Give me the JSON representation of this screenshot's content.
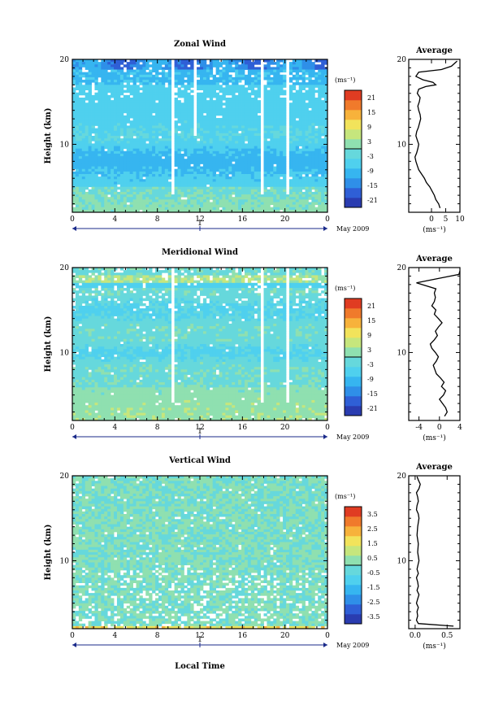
{
  "page": {
    "xlabel": "Local Time",
    "date_label": "May 2009",
    "day_marker": "1"
  },
  "chart_data": [
    {
      "type": "heatmap",
      "title": "Zonal Wind",
      "ylabel": "Height (km)",
      "xlabel": "Local Time",
      "x_ticks": [
        "0",
        "4",
        "8",
        "12",
        "16",
        "20",
        "0"
      ],
      "xlim": [
        0,
        24
      ],
      "ylim": [
        2,
        20
      ],
      "y_ticks": [
        "20",
        "10"
      ],
      "colorbar": {
        "unit": "(ms⁻¹)",
        "ticks": [
          "21",
          "15",
          "9",
          "3",
          "-3",
          "-9",
          "-15",
          "-21"
        ],
        "range": [
          -24,
          24
        ]
      },
      "colormap": [
        "#2a3cb0",
        "#2f5fd6",
        "#2f8fe8",
        "#36b5f0",
        "#4fd0ee",
        "#66d8dc",
        "#8fe0b0",
        "#c6e67d",
        "#f2e35b",
        "#f7b23b",
        "#f07a2b",
        "#e03c22"
      ],
      "dominant_field": "mostly negative (-3 to -12 ms⁻¹) between 3 and 17 km, stronger westward near 8 km, near zero near the ground and above 18 km"
    },
    {
      "type": "line",
      "title": "Average",
      "xlabel": "(ms⁻¹)",
      "ylabel": "",
      "x_ticks": [
        "0",
        "5",
        "10"
      ],
      "xlim": [
        -8,
        10
      ],
      "ylim": [
        2,
        20
      ],
      "y_ticks": [
        "20",
        "10"
      ],
      "series": [
        {
          "x": [
            3,
            2.5,
            1.5,
            1.0,
            0.2,
            -0.6,
            -1.8,
            -2.5,
            -3.5,
            -4.5,
            -5.0,
            -5.5,
            -5.8,
            -5.2,
            -4.8,
            -4.5,
            -5.0,
            -5.5,
            -5.2,
            -4.6,
            -4.2,
            -3.8,
            -4.0,
            -4.5,
            -4.8,
            -4.3,
            -4.0,
            -5.0,
            -4.5,
            -2.0,
            1.5,
            0.5,
            -3.0,
            -5.5,
            -4.5,
            3.5,
            7.0,
            9.0
          ],
          "y": [
            2.5,
            3.0,
            3.5,
            4.0,
            4.5,
            5.0,
            5.5,
            6.0,
            6.5,
            7.0,
            7.5,
            8.0,
            8.5,
            9.0,
            9.5,
            10.0,
            10.5,
            11.0,
            11.5,
            12.0,
            12.5,
            13.0,
            13.5,
            14.0,
            14.5,
            15.0,
            15.5,
            16.0,
            16.5,
            16.8,
            17.0,
            17.3,
            17.6,
            18.0,
            18.5,
            18.8,
            19.2,
            19.8
          ]
        }
      ]
    },
    {
      "type": "heatmap",
      "title": "Meridional Wind",
      "ylabel": "Height (km)",
      "xlabel": "Local Time",
      "x_ticks": [
        "0",
        "4",
        "8",
        "12",
        "16",
        "20",
        "0"
      ],
      "xlim": [
        0,
        24
      ],
      "ylim": [
        2,
        20
      ],
      "y_ticks": [
        "20",
        "10"
      ],
      "colorbar": {
        "unit": "(ms⁻¹)",
        "ticks": [
          "21",
          "15",
          "9",
          "3",
          "-3",
          "-9",
          "-15",
          "-21"
        ],
        "range": [
          -24,
          24
        ]
      },
      "colormap": [
        "#2a3cb0",
        "#2f5fd6",
        "#2f8fe8",
        "#36b5f0",
        "#4fd0ee",
        "#66d8dc",
        "#8fe0b0",
        "#c6e67d",
        "#f2e35b",
        "#f7b23b",
        "#f07a2b",
        "#e03c22"
      ],
      "dominant_field": "mostly weak (-6 to +3 ms⁻¹), positive band near 3–6 km and near 18 km, negative layers near 10 km and 15 km"
    },
    {
      "type": "line",
      "title": "Average",
      "xlabel": "(ms⁻¹)",
      "ylabel": "",
      "x_ticks": [
        "-4",
        "0",
        "4"
      ],
      "xlim": [
        -6,
        4
      ],
      "ylim": [
        2,
        20
      ],
      "y_ticks": [
        "20",
        "10"
      ],
      "series": [
        {
          "x": [
            1.0,
            1.5,
            1.2,
            0.6,
            0.0,
            0.8,
            1.2,
            0.4,
            0.9,
            0.2,
            -0.6,
            -0.9,
            -1.2,
            -0.6,
            -0.2,
            -0.8,
            -1.5,
            -1.8,
            -1.0,
            -0.4,
            -0.8,
            -0.2,
            0.5,
            -0.2,
            -1.0,
            -0.7,
            -1.5,
            -1.0,
            -0.8,
            -1.0,
            -0.7,
            -4.5,
            0.5,
            3.8,
            4.0
          ],
          "y": [
            2.5,
            3.0,
            3.5,
            4.0,
            4.5,
            5.0,
            5.5,
            6.0,
            6.5,
            7.0,
            7.5,
            8.0,
            8.5,
            9.0,
            9.5,
            10.0,
            10.5,
            11.0,
            11.5,
            12.0,
            12.5,
            13.0,
            13.5,
            14.0,
            14.5,
            15.0,
            15.5,
            16.0,
            16.5,
            17.0,
            17.5,
            18.2,
            18.8,
            19.2,
            19.6
          ]
        }
      ]
    },
    {
      "type": "heatmap",
      "title": "Vertical Wind",
      "ylabel": "Height (km)",
      "xlabel": "Local Time",
      "x_ticks": [
        "0",
        "4",
        "8",
        "12",
        "16",
        "20",
        "0"
      ],
      "xlim": [
        0,
        24
      ],
      "ylim": [
        2,
        20
      ],
      "y_ticks": [
        "20",
        "10"
      ],
      "colorbar": {
        "unit": "(ms⁻¹)",
        "ticks": [
          "3.5",
          "2.5",
          "1.5",
          "0.5",
          "-0.5",
          "-1.5",
          "-2.5",
          "-3.5"
        ],
        "range": [
          -4,
          4
        ]
      },
      "colormap": [
        "#2a3cb0",
        "#2f5fd6",
        "#2f8fe8",
        "#36b5f0",
        "#4fd0ee",
        "#66d8dc",
        "#8fe0b0",
        "#c6e67d",
        "#f2e35b",
        "#f7b23b",
        "#f07a2b",
        "#e03c22"
      ],
      "dominant_field": "near zero everywhere (-0.5 to +0.5 ms⁻¹)"
    },
    {
      "type": "line",
      "title": "Average",
      "xlabel": "(ms⁻¹)",
      "ylabel": "",
      "x_ticks": [
        "0.0",
        "0.5"
      ],
      "xlim": [
        -0.1,
        0.7
      ],
      "ylim": [
        2,
        20
      ],
      "y_ticks": [
        "20",
        "10"
      ],
      "series": [
        {
          "x": [
            0.6,
            0.05,
            0.02,
            0.04,
            0.03,
            0.05,
            0.02,
            0.04,
            0.06,
            0.03,
            0.05,
            0.04,
            0.02,
            0.05,
            0.03,
            0.06,
            0.04,
            0.05,
            0.03,
            0.04,
            0.06,
            0.05,
            0.02,
            0.03,
            0.05,
            0.04,
            0.02,
            0.06,
            0.08,
            0.05,
            0.03
          ],
          "y": [
            2.3,
            2.6,
            3.0,
            3.5,
            4.0,
            4.5,
            5.0,
            5.5,
            6.0,
            6.5,
            7.0,
            7.5,
            8.0,
            8.5,
            9.0,
            10.0,
            11.0,
            12.0,
            13.0,
            14.0,
            15.0,
            15.5,
            16.0,
            16.5,
            17.0,
            17.5,
            18.0,
            18.5,
            19.0,
            19.5,
            19.9
          ]
        }
      ]
    }
  ]
}
